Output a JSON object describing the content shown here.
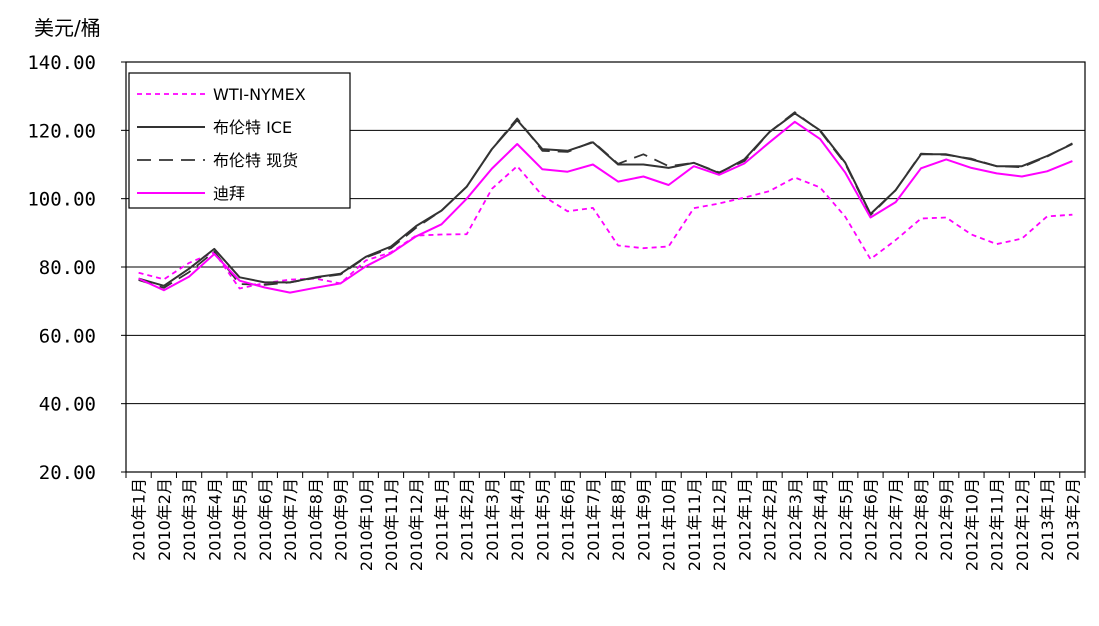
{
  "chart_data": {
    "type": "line",
    "ylabel": "美元/桶",
    "ylim": [
      20,
      140
    ],
    "yticks": [
      "20.00",
      "40.00",
      "60.00",
      "80.00",
      "100.00",
      "120.00",
      "140.00"
    ],
    "grid": true,
    "legend_position": "top-left",
    "categories": [
      "2010年1月",
      "2010年2月",
      "2010年3月",
      "2010年4月",
      "2010年5月",
      "2010年6月",
      "2010年7月",
      "2010年8月",
      "2010年9月",
      "2010年10月",
      "2010年11月",
      "2010年12月",
      "2011年1月",
      "2011年2月",
      "2011年3月",
      "2011年4月",
      "2011年5月",
      "2011年6月",
      "2011年7月",
      "2011年8月",
      "2011年9月",
      "2011年10月",
      "2011年11月",
      "2011年12月",
      "2012年1月",
      "2012年2月",
      "2012年3月",
      "2012年4月",
      "2012年5月",
      "2012年6月",
      "2012年7月",
      "2012年8月",
      "2012年9月",
      "2012年10月",
      "2012年11月",
      "2012年12月",
      "2013年1月",
      "2013年2月"
    ],
    "series": [
      {
        "name": "WTI-NYMEX",
        "color": "#ff00ff",
        "style": "dotted",
        "values": [
          78.3,
          76.4,
          81.2,
          84.3,
          73.7,
          75.3,
          76.3,
          76.6,
          75.2,
          81.9,
          84.3,
          89.2,
          89.5,
          89.6,
          102.9,
          109.5,
          100.9,
          96.3,
          97.3,
          86.3,
          85.5,
          86.0,
          97.2,
          98.6,
          100.3,
          102.2,
          106.2,
          103.3,
          94.7,
          82.3,
          87.9,
          94.2,
          94.5,
          89.5,
          86.7,
          88.3,
          94.8,
          95.3
        ]
      },
      {
        "name": "布伦特 ICE",
        "color": "#333333",
        "style": "solid",
        "values": [
          76.6,
          74.5,
          79.5,
          85.3,
          77.0,
          75.5,
          75.5,
          77.0,
          78.0,
          83.0,
          86.0,
          92.0,
          96.5,
          103.5,
          114.5,
          123.0,
          114.5,
          114.0,
          116.5,
          110.0,
          110.0,
          109.0,
          110.5,
          107.5,
          111.5,
          119.5,
          125.0,
          120.0,
          110.5,
          95.5,
          102.5,
          113.0,
          113.0,
          111.5,
          109.5,
          109.5,
          112.5,
          116.0
        ]
      },
      {
        "name": "布伦特 现货",
        "color": "#333333",
        "style": "dashed",
        "values": [
          76.2,
          73.9,
          78.5,
          84.5,
          75.0,
          74.8,
          75.5,
          76.8,
          77.8,
          82.8,
          85.5,
          91.5,
          96.5,
          103.5,
          114.5,
          123.5,
          114.0,
          113.7,
          116.7,
          110.2,
          113.0,
          109.5,
          110.5,
          107.7,
          111.0,
          119.5,
          125.3,
          119.8,
          110.2,
          95.2,
          102.5,
          113.2,
          112.8,
          111.7,
          109.5,
          109.2,
          112.3,
          116.2
        ]
      },
      {
        "name": "迪拜",
        "color": "#ff00ff",
        "style": "solid",
        "values": [
          76.6,
          73.2,
          77.2,
          83.8,
          76.0,
          74.0,
          72.5,
          73.9,
          75.2,
          80.2,
          84.0,
          89.0,
          92.5,
          100.0,
          108.8,
          116.0,
          108.6,
          107.9,
          110.0,
          105.0,
          106.5,
          104.0,
          109.5,
          107.0,
          110.3,
          116.5,
          122.5,
          117.5,
          107.6,
          94.5,
          99.0,
          108.9,
          111.5,
          109.0,
          107.4,
          106.5,
          108.0,
          111.0
        ]
      }
    ]
  }
}
